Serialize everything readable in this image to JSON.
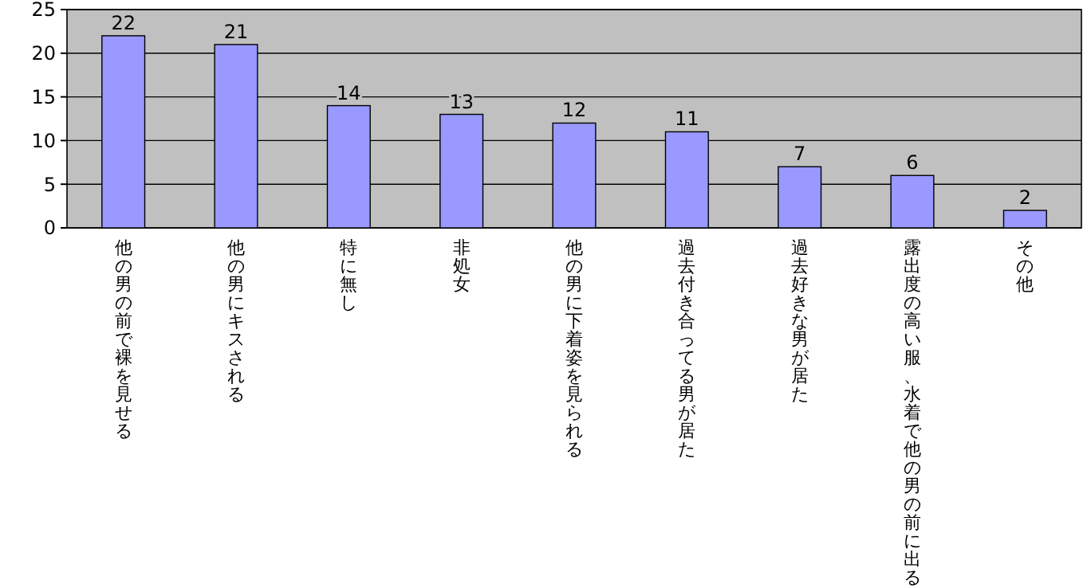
{
  "chart_data": {
    "type": "bar",
    "categories": [
      "他の男の前で裸を見せる",
      "他の男にキスされる",
      "特に無し",
      "非処女",
      "他の男に下着姿を見られる",
      "過去付き合ってる男が居た",
      "過去好きな男が居た",
      "露出度の高い服、水着で他の男の前に出る",
      "その他"
    ],
    "values": [
      22,
      21,
      14,
      13,
      12,
      11,
      7,
      6,
      2
    ],
    "color": "#9999ff",
    "ylim": [
      0,
      25
    ],
    "yticks": [
      0,
      5,
      10,
      15,
      20,
      25
    ],
    "grid": "y",
    "data_labels": true
  }
}
